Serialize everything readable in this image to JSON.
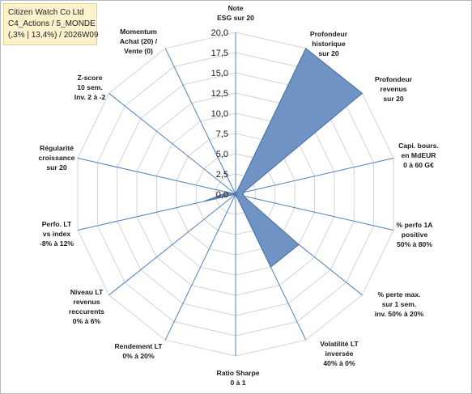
{
  "title_box": {
    "line1": "Citizen Watch Co Ltd",
    "line2": "C4_Actions / 5_MONDE",
    "line3": "(,3% | 13,4%) / 2026W09"
  },
  "chart_data": {
    "type": "radar",
    "rlim": [
      0,
      20
    ],
    "ticks": [
      "0,0",
      "2,5",
      "5,0",
      "7,5",
      "10,0",
      "12,5",
      "15,0",
      "17,5",
      "20,0"
    ],
    "tick_values": [
      0,
      2.5,
      5,
      7.5,
      10,
      12.5,
      15,
      17.5,
      20
    ],
    "grid": true,
    "axes": [
      [
        "Note",
        "ESG sur 20"
      ],
      [
        "Profondeur",
        "historique",
        "sur 20"
      ],
      [
        "Profondeur",
        "revenus",
        "sur 20"
      ],
      [
        "Capi. bours.",
        "en MdEUR",
        "0 à 60 G€"
      ],
      [
        "% perfo 1A",
        "positive",
        "50% à 80%"
      ],
      [
        "% perte max.",
        "sur 1 sem.",
        "inv. 50% à 20%"
      ],
      [
        "Volatilité LT",
        "inversée",
        "40% à 0%"
      ],
      [
        "Ratio Sharpe",
        "0 à 1"
      ],
      [
        "Rendement LT",
        "0% à 20%"
      ],
      [
        "Niveau LT",
        "revenus",
        "reccurents",
        "0% à 6%"
      ],
      [
        "Perfo. LT",
        "vs index",
        "-8% à 12%"
      ],
      [
        "Régularité",
        "croissance",
        "sur 20"
      ],
      [
        "Z-score",
        "10 sem.",
        "Inv. 2 à -2"
      ],
      [
        "Momentum",
        "Achat (20) /",
        "Vente (0)"
      ]
    ],
    "values": [
      0,
      20,
      20,
      1,
      1,
      10,
      10,
      0,
      0,
      0,
      4,
      1,
      0,
      0
    ],
    "colors": {
      "fill": "#6f93c2",
      "stroke": "#4a6fa4",
      "axis": "#4f81bd",
      "grid": "#d4d4d4"
    }
  }
}
